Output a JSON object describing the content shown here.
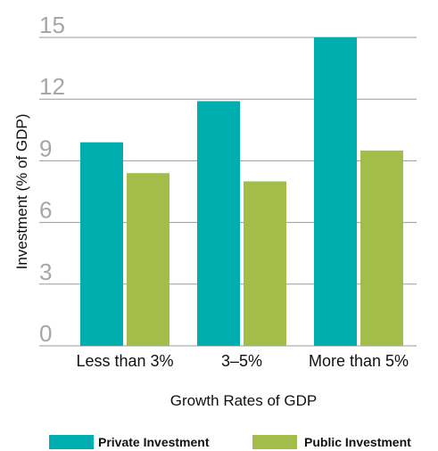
{
  "chart_data": {
    "type": "bar",
    "title": "",
    "xlabel": "Growth Rates of GDP",
    "ylabel": "Investment (% of GDP)",
    "ylim": [
      0,
      15
    ],
    "yticks": [
      "0",
      "3",
      "6",
      "9",
      "12",
      "15"
    ],
    "categories": [
      "Less than 3%",
      "3–5%",
      "More than 5%"
    ],
    "series": [
      {
        "name": "Private Investment",
        "values": [
          9.9,
          11.9,
          15.0
        ],
        "color": "#00ADAF"
      },
      {
        "name": "Public Investment",
        "values": [
          8.4,
          8.0,
          9.5
        ],
        "color": "#A2BD4A"
      }
    ],
    "grid": true,
    "legend_position": "bottom"
  }
}
